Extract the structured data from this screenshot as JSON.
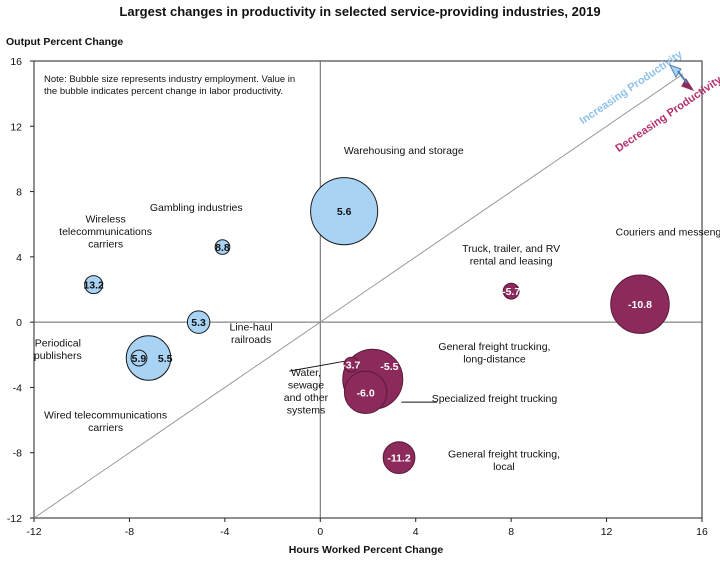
{
  "chart_data": {
    "type": "scatter",
    "title": "Largest changes in productivity in selected service-providing industries, 2019",
    "xlabel": "Hours Worked Percent Change",
    "ylabel": "Output Percent Change",
    "xlim": [
      -12,
      16
    ],
    "ylim": [
      -12,
      16
    ],
    "xticks": [
      -12,
      -8,
      -4,
      0,
      4,
      8,
      12,
      16
    ],
    "yticks": [
      -12,
      -8,
      -4,
      0,
      4,
      8,
      12,
      16
    ],
    "note": "Note: Bubble size represents industry employment. Value in the bubble indicates percent change in labor productivity.",
    "diagonal_labels": {
      "increasing": "Increasing Productivity",
      "decreasing": "Decreasing Productivity"
    },
    "colors": {
      "increasing": "#a9d3f5",
      "increasing_stroke": "#1a1a1a",
      "decreasing": "#8c2a5c",
      "decreasing_text": "#b4316f",
      "increasing_text": "#8fc2ec"
    },
    "points": [
      {
        "name": "Warehousing and storage",
        "x": 1.0,
        "y": 6.8,
        "value": "5.6",
        "employment": 1.25,
        "group": "increasing"
      },
      {
        "name": "Gambling industries",
        "x": -4.1,
        "y": 4.6,
        "value": "8.8",
        "employment": 0.06,
        "group": "increasing"
      },
      {
        "name": "Wireless telecommunications carriers",
        "x": -9.5,
        "y": 2.3,
        "value": "13.2",
        "employment": 0.09,
        "group": "increasing"
      },
      {
        "name": "Line-haul railroads",
        "x": -5.1,
        "y": 0.0,
        "value": "5.3",
        "employment": 0.14,
        "group": "increasing"
      },
      {
        "name": "Wired telecommunications carriers",
        "x": -7.2,
        "y": -2.2,
        "value": "5.5",
        "employment": 0.55,
        "group": "increasing"
      },
      {
        "name": "Periodical publishers",
        "x": -7.6,
        "y": -2.2,
        "value": "5.9",
        "employment": 0.07,
        "group": "increasing"
      },
      {
        "name": "Truck, trailer, and RV rental and leasing",
        "x": 8.0,
        "y": 1.9,
        "value": "-5.7",
        "employment": 0.07,
        "group": "decreasing"
      },
      {
        "name": "Couriers and messengers",
        "x": 13.4,
        "y": 1.1,
        "value": "-10.8",
        "employment": 0.95,
        "group": "decreasing"
      },
      {
        "name": "General freight trucking, long-distance",
        "x": 2.2,
        "y": -3.5,
        "value": "-5.5",
        "employment": 1.0,
        "group": "decreasing"
      },
      {
        "name": "Specialized freight trucking",
        "x": 1.9,
        "y": -4.3,
        "value": "-6.0",
        "employment": 0.5,
        "group": "decreasing"
      },
      {
        "name": "Water, sewage and other systems",
        "x": 1.3,
        "y": -2.6,
        "value": "-3.7",
        "employment": 0.06,
        "group": "decreasing"
      },
      {
        "name": "General freight trucking, local",
        "x": 3.3,
        "y": -8.3,
        "value": "-11.2",
        "employment": 0.28,
        "group": "decreasing"
      }
    ],
    "labels": [
      {
        "lines": [
          "Warehousing and storage"
        ],
        "x": 3.5,
        "y": 10.3
      },
      {
        "lines": [
          "Gambling industries"
        ],
        "x": -5.2,
        "y": 6.8
      },
      {
        "lines": [
          "Wireless",
          "telecommunications",
          "carriers"
        ],
        "x": -9.0,
        "y": 6.1
      },
      {
        "lines": [
          "Line-haul",
          "railroads"
        ],
        "x": -2.9,
        "y": -0.5
      },
      {
        "lines": [
          "Periodical",
          "publishers"
        ],
        "x": -11.0,
        "y": -1.5
      },
      {
        "lines": [
          "Wired telecommunications",
          "carriers"
        ],
        "x": -9.0,
        "y": -5.9
      },
      {
        "lines": [
          "Truck, trailer, and RV",
          "rental and leasing"
        ],
        "x": 8.0,
        "y": 4.3
      },
      {
        "lines": [
          "Couriers and messengers"
        ],
        "x": 14.9,
        "y": 5.3
      },
      {
        "lines": [
          "General freight trucking,",
          "long-distance"
        ],
        "x": 7.3,
        "y": -1.7
      },
      {
        "lines": [
          "Specialized freight trucking"
        ],
        "x": 7.3,
        "y": -4.9
      },
      {
        "lines": [
          "Water,",
          "sewage",
          "and other",
          "systems"
        ],
        "x": -0.6,
        "y": -3.3
      },
      {
        "lines": [
          "General freight trucking,",
          "local"
        ],
        "x": 7.7,
        "y": -8.3
      }
    ]
  }
}
